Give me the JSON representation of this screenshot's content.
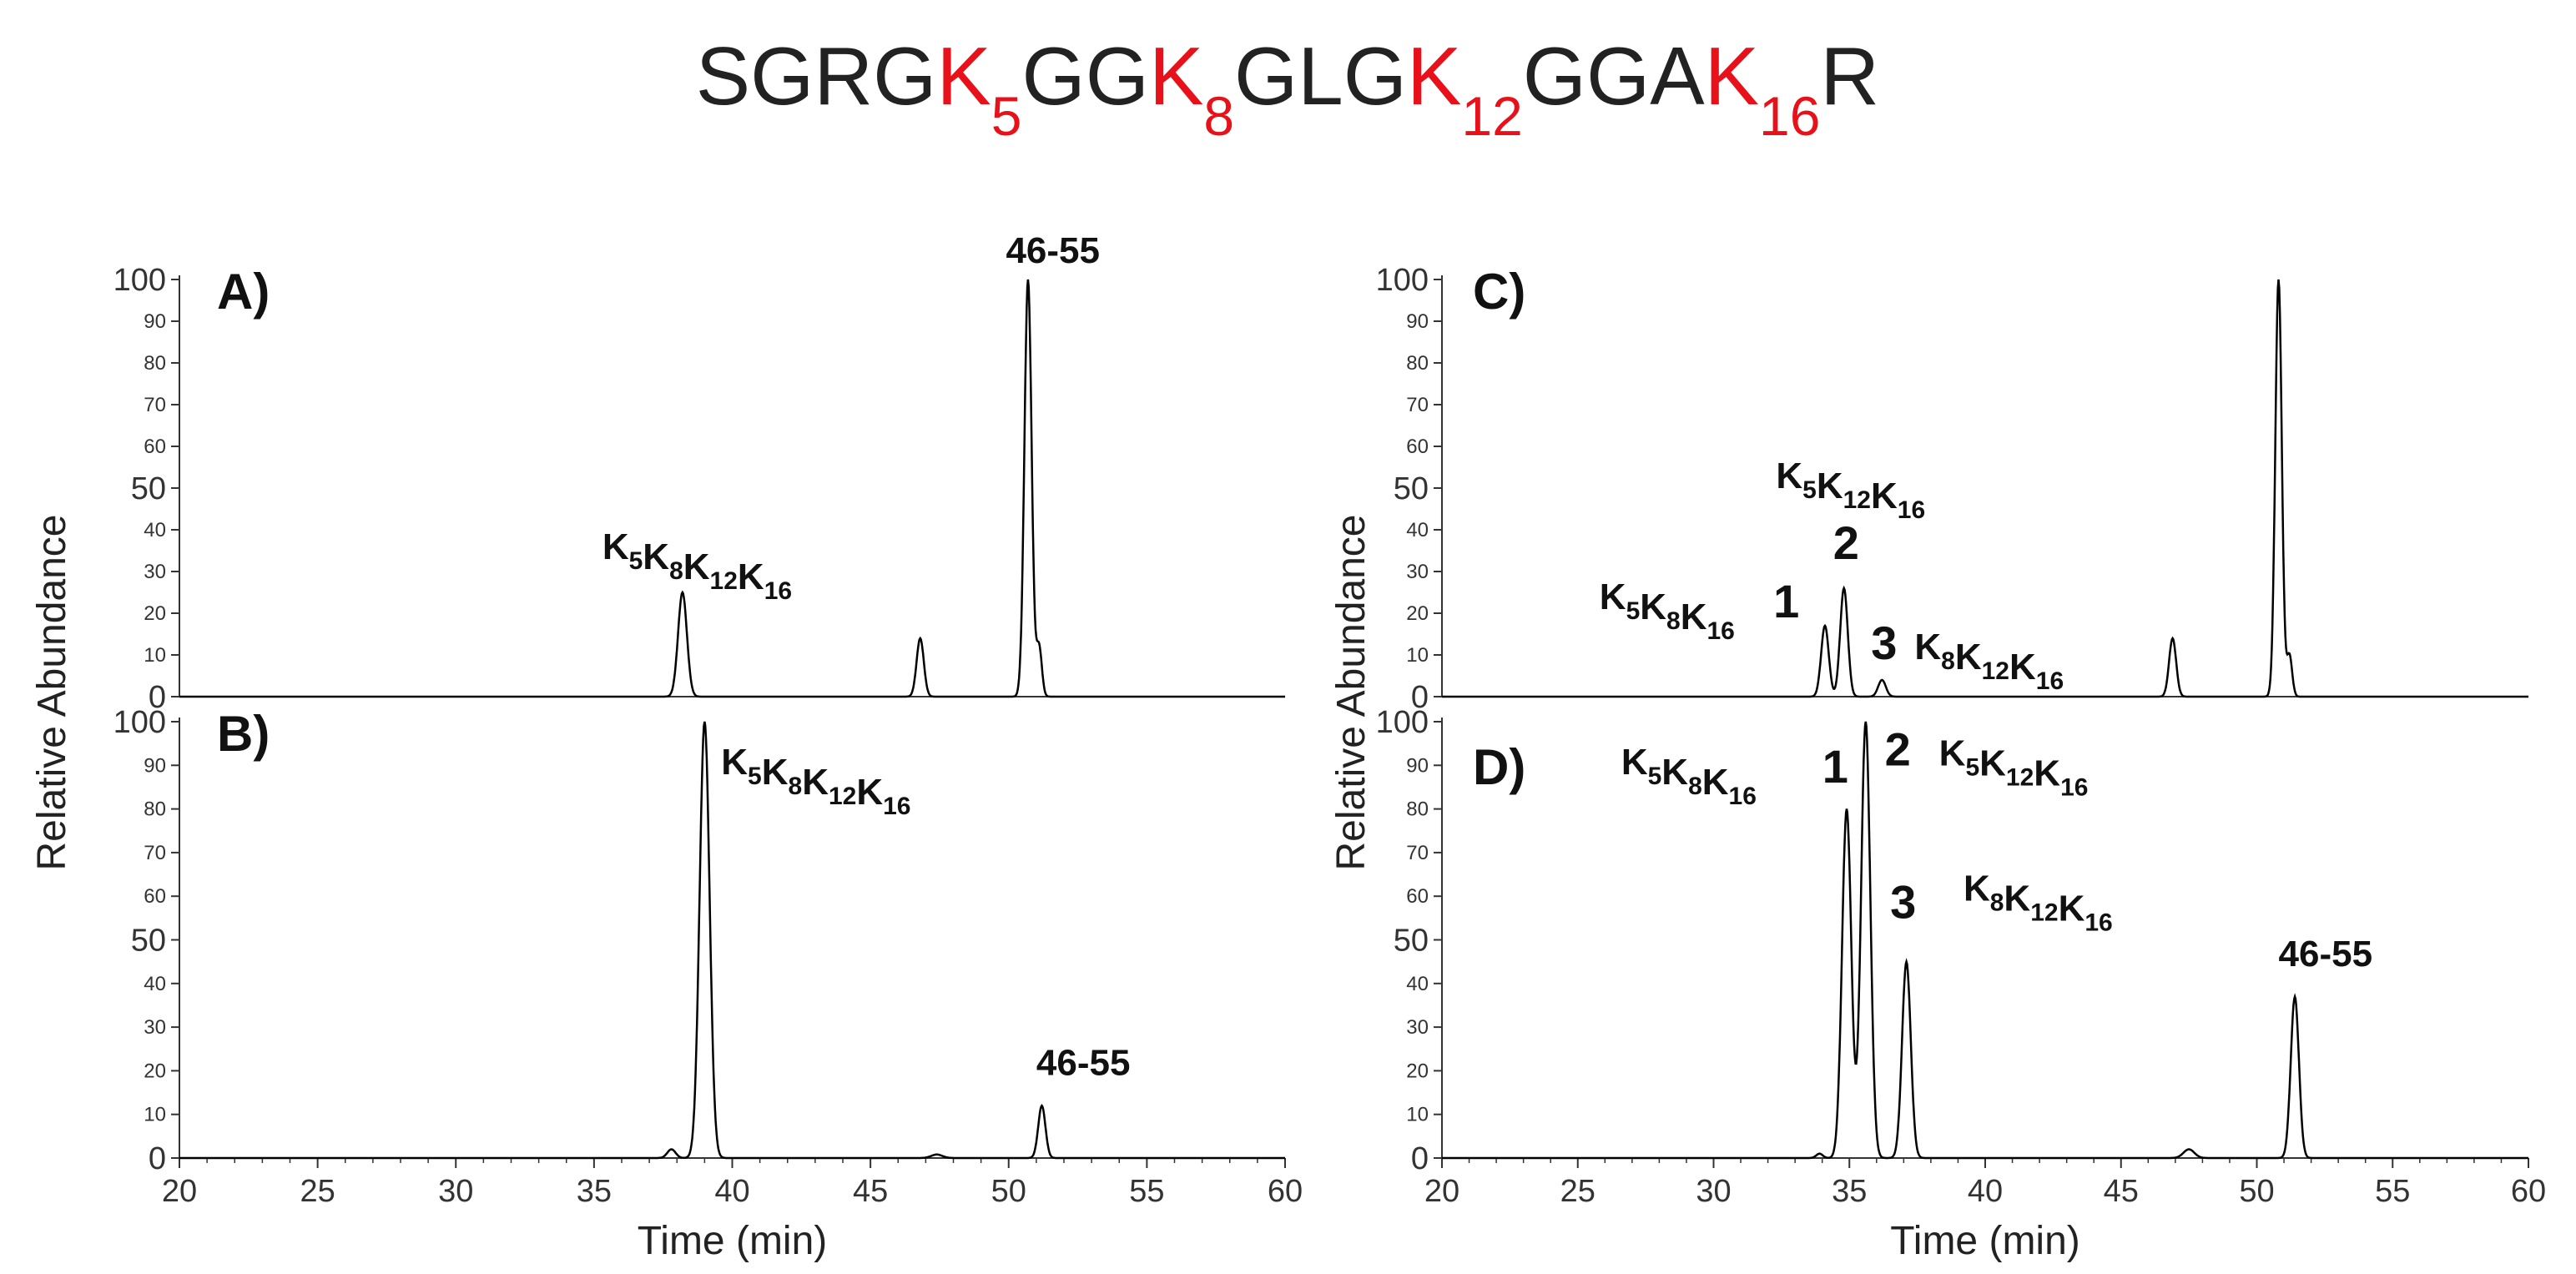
{
  "figure": {
    "sequence": [
      {
        "t": "SGRG",
        "k": false
      },
      {
        "t": "K",
        "k": true,
        "sub": "5"
      },
      {
        "t": "GG",
        "k": false
      },
      {
        "t": "K",
        "k": true,
        "sub": "8"
      },
      {
        "t": "GLG",
        "k": false
      },
      {
        "t": "K",
        "k": true,
        "sub": "12"
      },
      {
        "t": "GGA",
        "k": false
      },
      {
        "t": "K",
        "k": true,
        "sub": "16"
      },
      {
        "t": "R",
        "k": false
      }
    ],
    "colors": {
      "text": "#222222",
      "lysine": "#e8111a",
      "trace": "#000000"
    }
  },
  "chart_data": [
    {
      "type": "line",
      "panel": "A)",
      "xlabel": "",
      "ylabel": "Relative Abundance",
      "xlim": [
        20,
        60
      ],
      "ylim": [
        0,
        100
      ],
      "y_ticks": [
        "0",
        "10",
        "20",
        "30",
        "40",
        "50",
        "60",
        "70",
        "80",
        "90",
        "100"
      ],
      "x_ticks": [],
      "peaks": [
        {
          "rt": 38.2,
          "height": 25,
          "width": 0.16
        },
        {
          "rt": 46.8,
          "height": 14,
          "width": 0.13
        },
        {
          "rt": 50.7,
          "height": 100,
          "width": 0.13
        },
        {
          "rt": 51.1,
          "height": 12,
          "width": 0.1
        }
      ],
      "annotations": [
        {
          "text": "K",
          "subs": [
            [
              "K",
              "5"
            ],
            [
              "K",
              "8"
            ],
            [
              "K",
              "12"
            ],
            [
              "K",
              "16"
            ]
          ],
          "x": 35.3,
          "y": 33
        },
        {
          "label": "46-55",
          "x": 49.9,
          "y": 104
        }
      ]
    },
    {
      "type": "line",
      "panel": "B)",
      "xlabel": "Time (min)",
      "ylabel": "",
      "xlim": [
        20,
        60
      ],
      "ylim": [
        0,
        100
      ],
      "y_ticks": [
        "0",
        "10",
        "20",
        "30",
        "40",
        "50",
        "60",
        "70",
        "80",
        "90",
        "100"
      ],
      "x_ticks": [
        "20",
        "25",
        "30",
        "35",
        "40",
        "45",
        "50",
        "55",
        "60"
      ],
      "peaks": [
        {
          "rt": 37.8,
          "height": 2,
          "width": 0.15
        },
        {
          "rt": 39.0,
          "height": 100,
          "width": 0.18
        },
        {
          "rt": 47.4,
          "height": 0.8,
          "width": 0.2
        },
        {
          "rt": 51.2,
          "height": 12,
          "width": 0.13
        }
      ],
      "annotations": [
        {
          "subs": [
            [
              "K",
              "5"
            ],
            [
              "K",
              "8"
            ],
            [
              "K",
              "12"
            ],
            [
              "K",
              "16"
            ]
          ],
          "x": 39.6,
          "y": 88
        },
        {
          "label": "46-55",
          "x": 51.0,
          "y": 19
        }
      ]
    },
    {
      "type": "line",
      "panel": "C)",
      "xlabel": "",
      "ylabel": "Relative Abundance",
      "xlim": [
        20,
        60
      ],
      "ylim": [
        0,
        100
      ],
      "y_ticks": [
        "0",
        "10",
        "20",
        "30",
        "40",
        "50",
        "60",
        "70",
        "80",
        "90",
        "100"
      ],
      "x_ticks": [],
      "peaks": [
        {
          "rt": 34.1,
          "height": 17,
          "width": 0.14
        },
        {
          "rt": 34.8,
          "height": 26,
          "width": 0.14
        },
        {
          "rt": 36.2,
          "height": 4,
          "width": 0.14
        },
        {
          "rt": 46.9,
          "height": 14,
          "width": 0.13
        },
        {
          "rt": 50.8,
          "height": 100,
          "width": 0.12
        },
        {
          "rt": 51.2,
          "height": 10,
          "width": 0.1
        }
      ],
      "annotations": [
        {
          "subs": [
            [
              "K",
              "5"
            ],
            [
              "K",
              "12"
            ],
            [
              "K",
              "16"
            ]
          ],
          "x": 32.3,
          "y": 50
        },
        {
          "label": "2",
          "x": 34.4,
          "y": 33
        },
        {
          "subs": [
            [
              "K",
              "5"
            ],
            [
              "K",
              "8"
            ],
            [
              "K",
              "16"
            ]
          ],
          "x": 25.8,
          "y": 21
        },
        {
          "label": "1",
          "x": 32.2,
          "y": 19
        },
        {
          "label": "3",
          "x": 35.8,
          "y": 9
        },
        {
          "subs": [
            [
              "K",
              "8"
            ],
            [
              "K",
              "12"
            ],
            [
              "K",
              "16"
            ]
          ],
          "x": 37.4,
          "y": 9
        }
      ]
    },
    {
      "type": "line",
      "panel": "D)",
      "xlabel": "Time (min)",
      "ylabel": "",
      "xlim": [
        20,
        60
      ],
      "ylim": [
        0,
        100
      ],
      "y_ticks": [
        "0",
        "10",
        "20",
        "30",
        "40",
        "50",
        "60",
        "70",
        "80",
        "90",
        "100"
      ],
      "x_ticks": [
        "20",
        "25",
        "30",
        "35",
        "40",
        "45",
        "50",
        "55",
        "60"
      ],
      "peaks": [
        {
          "rt": 33.9,
          "height": 1,
          "width": 0.12
        },
        {
          "rt": 34.9,
          "height": 80,
          "width": 0.17
        },
        {
          "rt": 35.6,
          "height": 100,
          "width": 0.17
        },
        {
          "rt": 37.1,
          "height": 45,
          "width": 0.16
        },
        {
          "rt": 47.5,
          "height": 2,
          "width": 0.2
        },
        {
          "rt": 51.4,
          "height": 37,
          "width": 0.15
        }
      ],
      "annotations": [
        {
          "subs": [
            [
              "K",
              "5"
            ],
            [
              "K",
              "8"
            ],
            [
              "K",
              "16"
            ]
          ],
          "x": 26.6,
          "y": 88
        },
        {
          "label": "1",
          "x": 34.0,
          "y": 86
        },
        {
          "label": "2",
          "x": 36.3,
          "y": 90
        },
        {
          "subs": [
            [
              "K",
              "5"
            ],
            [
              "K",
              "12"
            ],
            [
              "K",
              "16"
            ]
          ],
          "x": 38.3,
          "y": 90
        },
        {
          "label": "3",
          "x": 36.5,
          "y": 55
        },
        {
          "subs": [
            [
              "K",
              "8"
            ],
            [
              "K",
              "12"
            ],
            [
              "K",
              "16"
            ]
          ],
          "x": 39.2,
          "y": 59
        },
        {
          "label": "46-55",
          "x": 50.8,
          "y": 44
        }
      ]
    }
  ]
}
